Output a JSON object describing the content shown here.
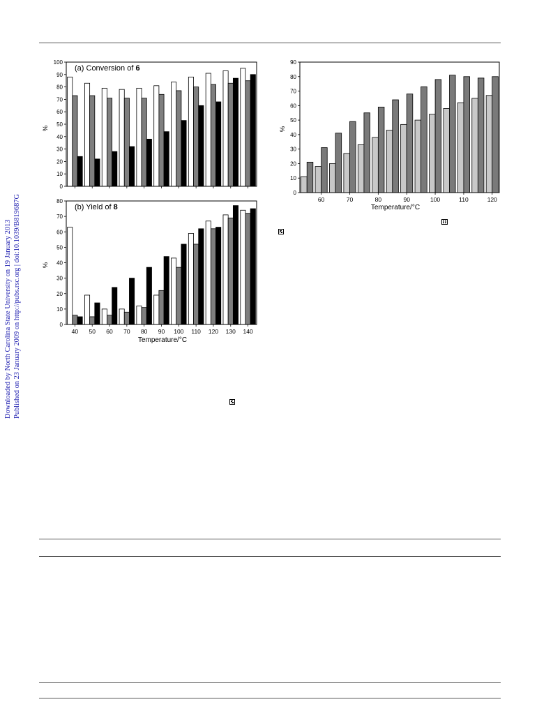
{
  "sidebar": {
    "line1": "Downloaded by North Carolina State University on 19 January 2013",
    "line2": "Published on 23 January 2009 on http://pubs.rsc.org | doi:10.1039/B819687G"
  },
  "colors": {
    "series_white": "#ffffff",
    "series_gray": "#7f7f7f",
    "series_black": "#000000",
    "series_light": "#c8c8c8",
    "series_dark": "#7a7a7a",
    "sidebar_text": "#1f1fb0"
  },
  "chart_data": [
    {
      "type": "bar",
      "title": "(a) Conversion of",
      "title_bold": "6",
      "ylabel": "%",
      "xlabel": "",
      "ylim": [
        0,
        100
      ],
      "yticks": [
        0,
        10,
        20,
        30,
        40,
        50,
        60,
        70,
        80,
        90,
        100
      ],
      "categories": [
        "40",
        "50",
        "60",
        "70",
        "80",
        "90",
        "100",
        "110",
        "120",
        "130",
        "140"
      ],
      "series": [
        {
          "values": [
            88,
            83,
            79,
            78,
            79,
            81,
            84,
            88,
            91,
            93,
            95
          ]
        },
        {
          "values": [
            73,
            73,
            71,
            71,
            71,
            74,
            77,
            80,
            82,
            83,
            85
          ]
        },
        {
          "values": [
            24,
            22,
            28,
            32,
            38,
            44,
            53,
            65,
            68,
            87,
            90
          ]
        }
      ]
    },
    {
      "type": "bar",
      "title": "(b) Yield of",
      "title_bold": "8",
      "ylabel": "%",
      "xlabel": "Temperature/°C",
      "ylim": [
        0,
        80
      ],
      "yticks": [
        0,
        10,
        20,
        30,
        40,
        50,
        60,
        70,
        80
      ],
      "categories": [
        "40",
        "50",
        "60",
        "70",
        "80",
        "90",
        "100",
        "110",
        "120",
        "130",
        "140"
      ],
      "series": [
        {
          "values": [
            63,
            19,
            10,
            10,
            12,
            19,
            43,
            59,
            67,
            71,
            74
          ]
        },
        {
          "values": [
            6,
            5,
            6,
            8,
            11,
            22,
            37,
            52,
            62,
            69,
            72
          ]
        },
        {
          "values": [
            5,
            14,
            24,
            30,
            37,
            44,
            52,
            62,
            63,
            77,
            75
          ]
        }
      ]
    },
    {
      "type": "bar",
      "title": "",
      "ylabel": "%",
      "xlabel": "Temperature/°C",
      "ylim": [
        0,
        90
      ],
      "yticks": [
        0,
        10,
        20,
        30,
        40,
        50,
        60,
        70,
        80,
        90
      ],
      "xlim": [
        52.5,
        122.5
      ],
      "xticks": [
        60,
        70,
        80,
        90,
        100,
        110,
        120
      ],
      "categories": [
        "55",
        "60",
        "65",
        "70",
        "75",
        "80",
        "85",
        "90",
        "95",
        "100",
        "105",
        "110",
        "115",
        "120"
      ],
      "series": [
        {
          "values": [
            11,
            18,
            20,
            27,
            33,
            38,
            43,
            47,
            50,
            54,
            58,
            62,
            65,
            67
          ]
        },
        {
          "values": [
            21,
            31,
            41,
            49,
            55,
            59,
            64,
            68,
            73,
            78,
            81,
            80,
            79,
            80
          ]
        }
      ]
    }
  ]
}
